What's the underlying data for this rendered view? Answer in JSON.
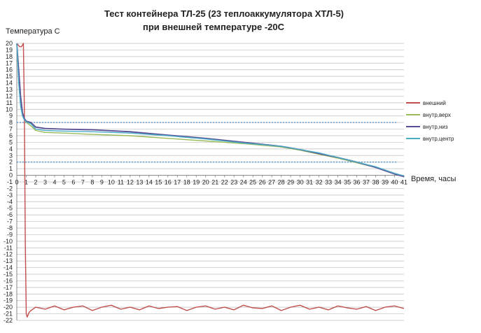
{
  "chart_data": {
    "type": "line",
    "title_line1": "Тест контейнера ТЛ-25 (23 теплоаккумулятора ХТЛ-5)",
    "title_line2": "при внешней температуре -20С",
    "ylabel": "Температура С",
    "xlabel": "Время, часы",
    "ylim": [
      -22,
      20
    ],
    "xlim": [
      0,
      41
    ],
    "y_ticks": [
      20,
      19,
      18,
      17,
      16,
      15,
      14,
      13,
      12,
      11,
      10,
      9,
      8,
      7,
      6,
      5,
      4,
      3,
      2,
      1,
      0,
      -1,
      -2,
      -3,
      -4,
      -5,
      -6,
      -7,
      -8,
      -9,
      -10,
      -11,
      -12,
      -13,
      -14,
      -15,
      -16,
      -17,
      -18,
      -19,
      -20,
      -21,
      -22
    ],
    "x_ticks": [
      "0",
      "1",
      "2",
      "3",
      "4",
      "5",
      "6",
      "7",
      "8",
      "9",
      "10",
      "11",
      "12",
      "13",
      "14",
      "15",
      "16",
      "17",
      "18",
      "19",
      "20",
      "21",
      "22",
      "23",
      "24",
      "25",
      "26",
      "27",
      "28",
      "29",
      "30",
      "31",
      "32",
      "33",
      "34",
      "35",
      "36",
      "37",
      "38",
      "39",
      "40",
      "41"
    ],
    "grid": true,
    "legend_position": "right",
    "reference_lines": [
      {
        "y": 8,
        "color": "#4a8fc7"
      },
      {
        "y": 2,
        "color": "#4a8fc7"
      }
    ],
    "series": [
      {
        "name": "внешний",
        "color": "#c0504d",
        "x": [
          0,
          0.3,
          0.5,
          0.7,
          0.8,
          0.9,
          1.0,
          1.1,
          1.3,
          1.5,
          2,
          3,
          4,
          5,
          6,
          7,
          8,
          9,
          10,
          11,
          12,
          13,
          14,
          15,
          16,
          17,
          18,
          19,
          20,
          21,
          22,
          23,
          24,
          25,
          26,
          27,
          28,
          29,
          30,
          31,
          32,
          33,
          34,
          35,
          36,
          37,
          38,
          39,
          40,
          41
        ],
        "values": [
          20,
          19.5,
          19.5,
          20,
          10,
          -10,
          -21,
          -21.5,
          -20.8,
          -20.5,
          -20,
          -20.3,
          -19.8,
          -20.4,
          -20,
          -19.8,
          -20.5,
          -20,
          -19.7,
          -20.3,
          -20,
          -20.4,
          -19.8,
          -20.2,
          -20,
          -19.9,
          -20.5,
          -20,
          -19.8,
          -20.3,
          -20,
          -20.4,
          -19.7,
          -20.1,
          -20.2,
          -19.8,
          -20.5,
          -20,
          -19.7,
          -20.3,
          -20,
          -20.4,
          -19.8,
          -20.1,
          -20.3,
          -19.9,
          -20.5,
          -20,
          -19.8,
          -20.2
        ]
      },
      {
        "name": "внутр,верх",
        "color": "#9bbb59",
        "x": [
          0,
          0.2,
          0.4,
          0.6,
          0.8,
          1.0,
          1.5,
          2,
          3,
          5,
          8,
          12,
          16,
          20,
          24,
          28,
          30,
          32,
          34,
          36,
          38,
          39,
          40,
          41
        ],
        "values": [
          20,
          15,
          11,
          9,
          8.5,
          8,
          7.5,
          6.8,
          6.5,
          6.4,
          6.2,
          6.0,
          5.6,
          5.2,
          4.8,
          4.3,
          3.8,
          3.2,
          2.6,
          1.9,
          1.2,
          0.8,
          0.3,
          -0.1
        ]
      },
      {
        "name": "внутр,низ",
        "color": "#5a4e96",
        "x": [
          0,
          0.2,
          0.4,
          0.6,
          0.8,
          1.0,
          1.5,
          2,
          3,
          5,
          8,
          12,
          16,
          20,
          24,
          28,
          30,
          32,
          34,
          36,
          38,
          39,
          40,
          41
        ],
        "values": [
          20,
          16,
          12,
          9.5,
          8.6,
          8.2,
          8.0,
          7.3,
          7.1,
          7.0,
          6.9,
          6.6,
          6.1,
          5.6,
          5.0,
          4.4,
          3.9,
          3.3,
          2.7,
          2.0,
          1.2,
          0.7,
          0.2,
          -0.2
        ]
      },
      {
        "name": "внутр,центр",
        "color": "#4bacc6",
        "x": [
          0,
          0.2,
          0.4,
          0.6,
          0.8,
          1.0,
          1.5,
          2,
          3,
          5,
          8,
          12,
          16,
          20,
          24,
          28,
          30,
          32,
          34,
          36,
          38,
          39,
          40,
          41
        ],
        "values": [
          20,
          14,
          10.5,
          9,
          8.4,
          8.1,
          7.8,
          7.0,
          6.8,
          6.7,
          6.6,
          6.4,
          6.0,
          5.5,
          4.9,
          4.4,
          3.9,
          3.4,
          2.7,
          2.0,
          1.3,
          0.8,
          0.3,
          -0.1
        ]
      }
    ]
  }
}
